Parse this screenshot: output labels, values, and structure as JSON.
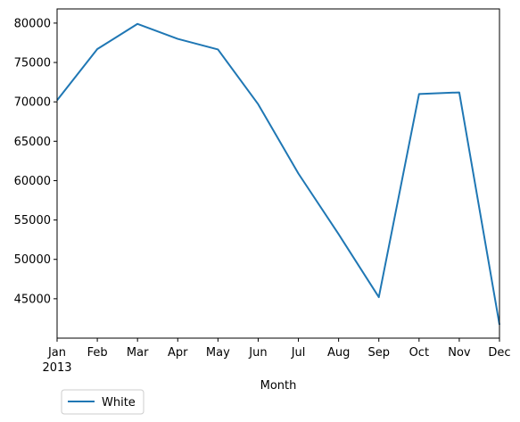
{
  "chart_data": {
    "type": "line",
    "categories": [
      "Jan",
      "Feb",
      "Mar",
      "Apr",
      "May",
      "Jun",
      "Jul",
      "Aug",
      "Sep",
      "Oct",
      "Nov",
      "Dec"
    ],
    "year_label": "2013",
    "series": [
      {
        "name": "White",
        "color": "#1f77b4",
        "values": [
          70200,
          76700,
          79900,
          78000,
          76650,
          69700,
          60900,
          53200,
          45200,
          71000,
          71200,
          41700
        ]
      }
    ],
    "xlabel": "Month",
    "ylabel": "",
    "ylim": [
      40000,
      81800
    ],
    "yticks": [
      45000,
      50000,
      55000,
      60000,
      65000,
      70000,
      75000,
      80000
    ],
    "grid": false,
    "legend_position": "bottom-left"
  }
}
